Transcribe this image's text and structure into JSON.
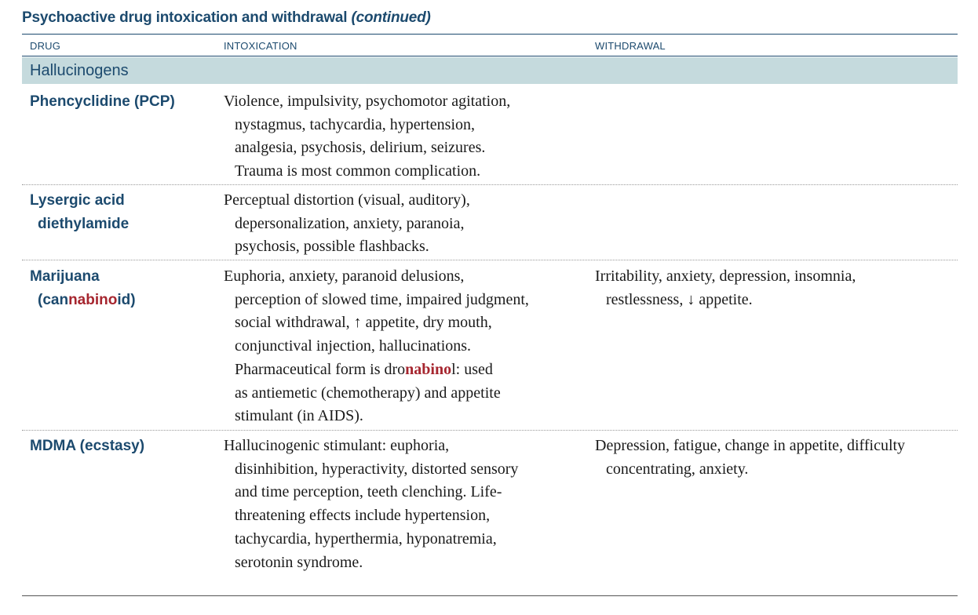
{
  "title": {
    "main": "Psychoactive drug intoxication and withdrawal ",
    "suffix": "(continued)"
  },
  "columns": {
    "drug": "DRUG",
    "intoxication": "INTOXICATION",
    "withdrawal": "WITHDRAWAL"
  },
  "section": "Hallucinogens",
  "rows": [
    {
      "drug": [
        "Phencyclidine (PCP)"
      ],
      "intoxication": [
        "Violence, impulsivity, psychomotor agitation,",
        "nystagmus, tachycardia, hypertension,",
        "analgesia, psychosis, delirium, seizures.",
        "Trauma is most common complication."
      ],
      "withdrawal": []
    },
    {
      "drug": [
        "Lysergic acid",
        "diethylamide"
      ],
      "intoxication": [
        "Perceptual distortion (visual, auditory),",
        "depersonalization, anxiety, paranoia,",
        "psychosis, possible flashbacks."
      ],
      "withdrawal": []
    },
    {
      "drug_line1": "Marijuana",
      "drug_line2_pre": "(can",
      "drug_line2_hl": "nabino",
      "drug_line2_post": "id)",
      "intoxication": [
        "Euphoria, anxiety, paranoid delusions,",
        "perception of slowed time, impaired judgment,",
        "social withdrawal, ↑ appetite, dry mouth,",
        "conjunctival injection, hallucinations."
      ],
      "intox_pharm_pre": "Pharmaceutical form is dro",
      "intox_pharm_hl": "nabino",
      "intox_pharm_post": "l: used",
      "intoxication_tail": [
        "as antiemetic (chemotherapy) and appetite",
        "stimulant (in AIDS)."
      ],
      "withdrawal": [
        "Irritability, anxiety, depression, insomnia,",
        "restlessness, ↓ appetite."
      ]
    },
    {
      "drug": [
        "MDMA (ecstasy)"
      ],
      "intoxication": [
        "Hallucinogenic stimulant: euphoria,",
        "disinhibition, hyperactivity, distorted sensory",
        "and time perception, teeth clenching. Life-",
        "threatening effects include hypertension,",
        "tachycardia, hyperthermia, hyponatremia,",
        "serotonin syndrome."
      ],
      "withdrawal": [
        "Depression, fatigue, change in appetite, difficulty",
        "concentrating, anxiety."
      ]
    }
  ]
}
